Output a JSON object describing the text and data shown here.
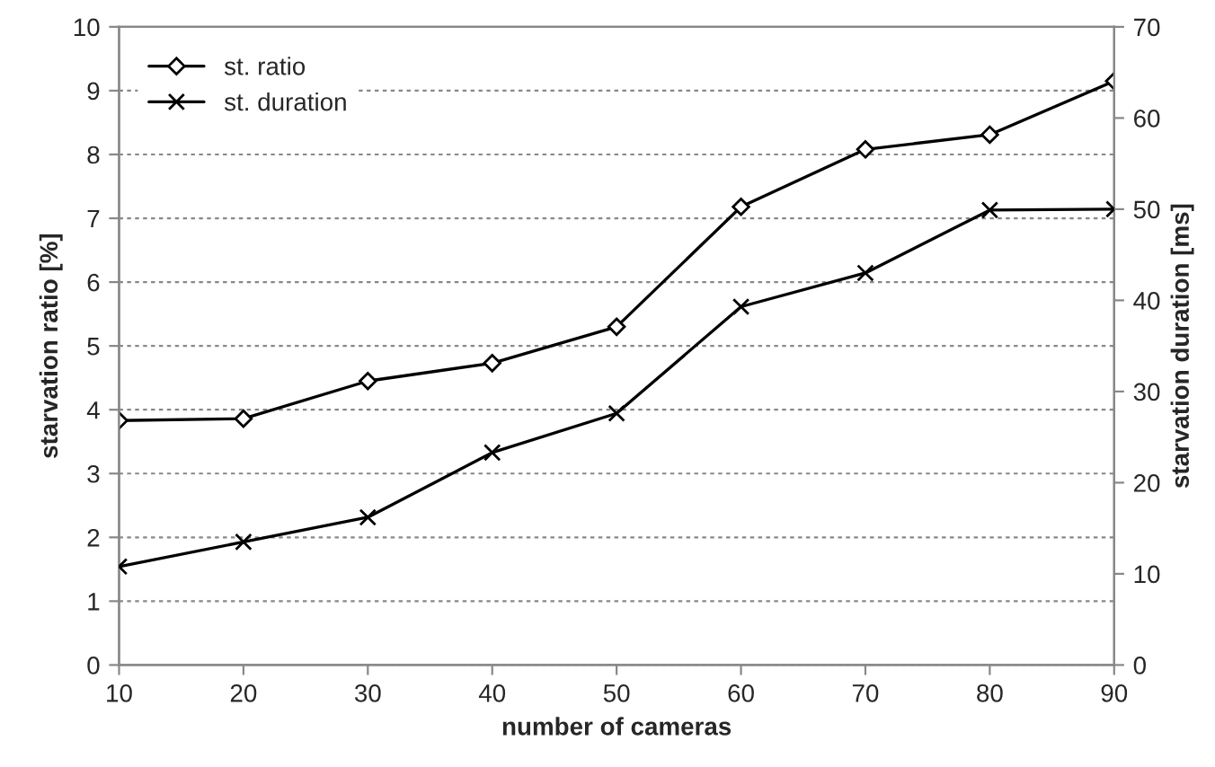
{
  "chart_data": {
    "type": "line",
    "xlabel": "number of cameras",
    "ylabel": "starvation ratio [%]",
    "y2label": "starvation duration [ms]",
    "x": [
      10,
      20,
      30,
      40,
      50,
      60,
      70,
      80,
      90
    ],
    "series": [
      {
        "name": "st. ratio",
        "color": "#000000",
        "marker": "diamond",
        "values": [
          3.83,
          3.86,
          4.45,
          4.73,
          5.3,
          7.18,
          8.08,
          8.31,
          9.15
        ]
      },
      {
        "name": "st. duration",
        "color": "#000000",
        "marker": "cross",
        "axis": "y2",
        "values": [
          10.8,
          13.5,
          16.2,
          23.3,
          27.6,
          39.3,
          43,
          49.9,
          50
        ]
      }
    ],
    "xlim": [
      10,
      90
    ],
    "xticks": [
      10,
      20,
      30,
      40,
      50,
      60,
      70,
      80,
      90
    ],
    "ylim": [
      0,
      10
    ],
    "yticks": [
      0,
      1,
      2,
      3,
      4,
      5,
      6,
      7,
      8,
      9,
      10
    ],
    "y2lim": [
      0,
      70
    ],
    "y2ticks": [
      0,
      10,
      20,
      30,
      40,
      50,
      60,
      70
    ],
    "grid": "y",
    "legend": "top left",
    "line_style": "solid"
  }
}
